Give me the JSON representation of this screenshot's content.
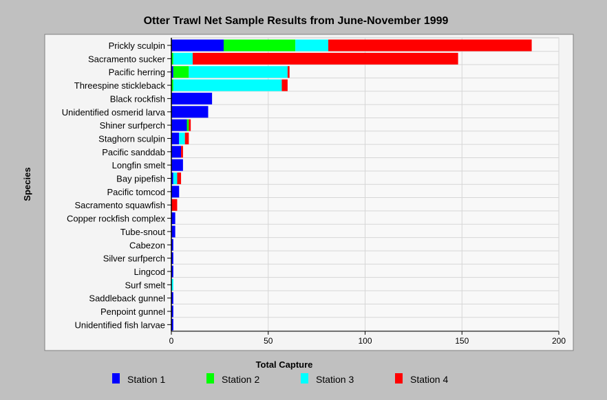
{
  "chart_data": {
    "type": "bar",
    "orientation": "horizontal",
    "stacked": true,
    "title": "Otter Trawl Net Sample Results from June-November 1999",
    "xlabel": "Total Capture",
    "ylabel": "Species",
    "xlim": [
      0,
      200
    ],
    "xticks": [
      0,
      50,
      100,
      150,
      200
    ],
    "grid": true,
    "legend_position": "bottom",
    "categories": [
      "Prickly sculpin",
      "Sacramento sucker",
      "Pacific herring",
      "Threespine stickleback",
      "Black rockfish",
      "Unidentified osmerid larva",
      "Shiner surfperch",
      "Staghorn sculpin",
      "Pacific sanddab",
      "Longfin smelt",
      "Bay pipefish",
      "Pacific tomcod",
      "Sacramento squawfish",
      "Copper rockfish complex",
      "Tube-snout",
      "Cabezon",
      "Silver surfperch",
      "Lingcod",
      "Surf smelt",
      "Saddleback gunnel",
      "Penpoint gunnel",
      "Unidentified fish larvae"
    ],
    "series": [
      {
        "name": "Station 1",
        "color": "#0000ff",
        "values": [
          27,
          0,
          1,
          0,
          21,
          19,
          8,
          4,
          5,
          6,
          1,
          4,
          0,
          2,
          2,
          1,
          1,
          1,
          0,
          1,
          1,
          1
        ]
      },
      {
        "name": "Station 2",
        "color": "#00ff00",
        "values": [
          37,
          1,
          8,
          1,
          0,
          0,
          1,
          0,
          0,
          0,
          0,
          0,
          0,
          0,
          0,
          0,
          0,
          0,
          0,
          0,
          0,
          0
        ]
      },
      {
        "name": "Station 3",
        "color": "#00ffff",
        "values": [
          17,
          10,
          51,
          56,
          0,
          0,
          0,
          3,
          0,
          0,
          2,
          0,
          0,
          0,
          0,
          0,
          0,
          0,
          1,
          0,
          0,
          0
        ]
      },
      {
        "name": "Station 4",
        "color": "#ff0000",
        "values": [
          105,
          137,
          1,
          3,
          0,
          0,
          1,
          2,
          1,
          0,
          2,
          0,
          3,
          0,
          0,
          0,
          0,
          0,
          0,
          0,
          0,
          0
        ]
      }
    ]
  }
}
